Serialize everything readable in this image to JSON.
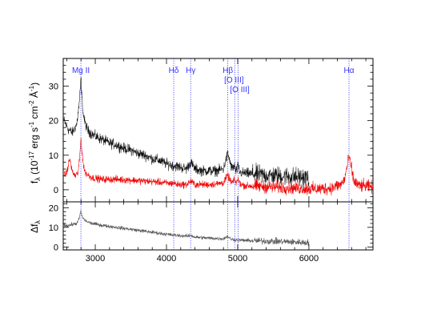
{
  "chart_data": [
    {
      "type": "line",
      "panel": "top",
      "ylabel_parts": {
        "f": "f",
        "sub": "λ",
        "open": " (10",
        "exp1": "-17",
        "mid1": " erg s",
        "exp2": "-1",
        "mid2": " cm",
        "exp3": "-2",
        "mid3": " Å",
        "exp4": "-1",
        "close": ")"
      },
      "xlim": [
        2550,
        6900
      ],
      "ylim": [
        -3.5,
        38
      ],
      "xticks": [
        3000,
        4000,
        5000,
        6000
      ],
      "yticks": [
        0,
        10,
        20,
        30
      ],
      "ytick_labels": [
        "0",
        "10",
        "20",
        "30"
      ],
      "lines": [
        {
          "name": "Mg II",
          "x": 2798
        },
        {
          "name": "Hδ",
          "x": 4102
        },
        {
          "name": "Hγ",
          "x": 4340
        },
        {
          "name": "Hβ",
          "x": 4861
        },
        {
          "name": "[O III]",
          "x": 4959
        },
        {
          "name": "[O III]",
          "x": 5007
        },
        {
          "name": "Hα",
          "x": 6563
        }
      ],
      "line_color": "#3333ff",
      "series": [
        {
          "color": "#111111",
          "noise": 1.3,
          "x": [
            2560,
            2620,
            2680,
            2740,
            2770,
            2790,
            2798,
            2806,
            2830,
            2860,
            2900,
            3000,
            3100,
            3200,
            3300,
            3400,
            3500,
            3600,
            3700,
            3800,
            3900,
            4000,
            4100,
            4200,
            4280,
            4340,
            4400,
            4500,
            4600,
            4700,
            4800,
            4840,
            4861,
            4880,
            4920,
            4959,
            4975,
            5007,
            5030,
            5100,
            5200,
            5300,
            5400,
            5500,
            5600,
            5700,
            5800,
            5900,
            6000
          ],
          "values": [
            20,
            17.5,
            16.5,
            19,
            24,
            29,
            33,
            29,
            22,
            19,
            17,
            15.5,
            14.5,
            13.5,
            13,
            12,
            11.5,
            10.5,
            10,
            9,
            8.5,
            7.5,
            7,
            6.5,
            6,
            8,
            6,
            5.5,
            5.5,
            5.5,
            6,
            9,
            10.5,
            9,
            6,
            7,
            5,
            7,
            5,
            4.8,
            4.6,
            4.4,
            4.2,
            4.1,
            4,
            3.9,
            3.8,
            3.6,
            3.4
          ]
        },
        {
          "color": "#ee0000",
          "noise": 0.9,
          "x": [
            2560,
            2600,
            2640,
            2680,
            2720,
            2760,
            2780,
            2798,
            2815,
            2840,
            2880,
            2950,
            3100,
            3300,
            3500,
            3700,
            3900,
            4050,
            4102,
            4150,
            4280,
            4340,
            4400,
            4500,
            4600,
            4700,
            4800,
            4840,
            4861,
            4880,
            4920,
            4959,
            4975,
            5007,
            5030,
            5100,
            5300,
            5500,
            5700,
            5900,
            6100,
            6300,
            6450,
            6500,
            6540,
            6563,
            6590,
            6630,
            6700,
            6800,
            6900
          ],
          "values": [
            4,
            5,
            9,
            5,
            4,
            5,
            9,
            15,
            11,
            6,
            4.5,
            3.5,
            3,
            3,
            2.8,
            2.5,
            2.2,
            1.8,
            2,
            1.5,
            1.5,
            2.5,
            1.5,
            1.5,
            1.5,
            1.7,
            2,
            3.5,
            4.2,
            3.2,
            2,
            2.8,
            2,
            3,
            1.7,
            1.2,
            1,
            0.8,
            0.6,
            0.4,
            0.2,
            0.5,
            1.5,
            3,
            7,
            9.5,
            7,
            2.5,
            1.2,
            1,
            0.8
          ]
        }
      ]
    },
    {
      "type": "line",
      "panel": "bottom",
      "ylabel_parts": {
        "delta": "Δf",
        "sub": "λ"
      },
      "xlim": [
        2550,
        6900
      ],
      "ylim": [
        -1.5,
        23
      ],
      "xticks": [
        3000,
        4000,
        5000,
        6000
      ],
      "xtick_labels": [
        "3000",
        "4000",
        "5000",
        "6000"
      ],
      "yticks": [
        0,
        10,
        20
      ],
      "ytick_labels": [
        "0",
        "10",
        "20"
      ],
      "series": [
        {
          "color": "#555555",
          "noise": 0.8,
          "x": [
            2560,
            2620,
            2680,
            2740,
            2770,
            2790,
            2798,
            2810,
            2840,
            2880,
            2950,
            3100,
            3300,
            3500,
            3700,
            3900,
            4100,
            4300,
            4340,
            4400,
            4600,
            4800,
            4861,
            4900,
            5000,
            5200,
            5400,
            5600,
            5800,
            6000
          ],
          "values": [
            11,
            11,
            11.5,
            12,
            14,
            17,
            19,
            16,
            14,
            13,
            12,
            11,
            10,
            9,
            8,
            7,
            6,
            5.5,
            6,
            5,
            4.5,
            4.2,
            5.5,
            4,
            3.5,
            3.2,
            3,
            2.8,
            2.5,
            2.2
          ]
        }
      ]
    }
  ]
}
